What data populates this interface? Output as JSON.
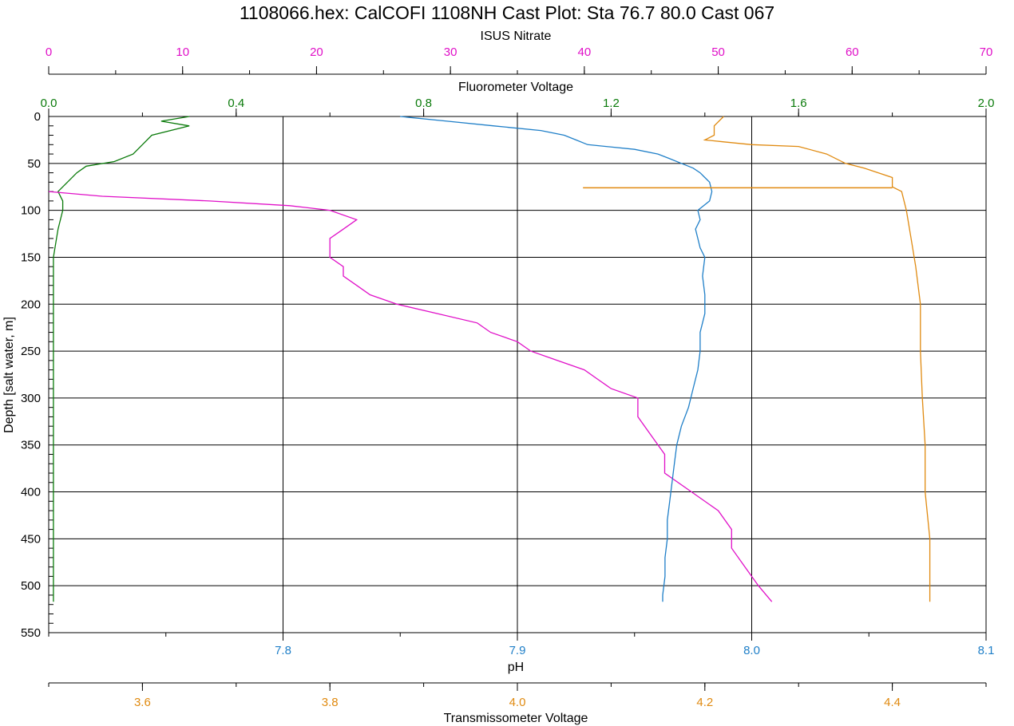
{
  "chart_data": {
    "type": "line",
    "title": "1108066.hex: CalCOFI 1108NH Cast Plot: Sta 76.7 80.0 Cast 067",
    "colors": {
      "nitrate": "#e010c8",
      "fluorometer": "#0a7a0a",
      "ph": "#1f7fc8",
      "transmissometer": "#e08a10",
      "grid": "#000000"
    },
    "grid": true,
    "axes": {
      "depth": {
        "label": "Depth [salt water, m]",
        "range": [
          0,
          550
        ],
        "inverted": true,
        "ticks": [
          0,
          50,
          100,
          150,
          200,
          250,
          300,
          350,
          400,
          450,
          500,
          550
        ],
        "tick_labels": [
          "0",
          "50",
          "100",
          "150",
          "200",
          "250",
          "300",
          "350",
          "400",
          "450",
          "500",
          "550"
        ]
      },
      "nitrate": {
        "label": "ISUS Nitrate",
        "range": [
          0,
          70
        ],
        "ticks": [
          0,
          10,
          20,
          30,
          40,
          50,
          60,
          70
        ],
        "tick_labels": [
          "0",
          "10",
          "20",
          "30",
          "40",
          "50",
          "60",
          "70"
        ]
      },
      "fluorometer": {
        "label": "Fluorometer Voltage",
        "range": [
          0.0,
          2.0
        ],
        "ticks": [
          0.0,
          0.4,
          0.8,
          1.2,
          1.6,
          2.0
        ],
        "tick_labels": [
          "0.0",
          "0.4",
          "0.8",
          "1.2",
          "1.6",
          "2.0"
        ]
      },
      "ph": {
        "label": "pH",
        "range": [
          7.7,
          8.1
        ],
        "ticks": [
          7.8,
          7.9,
          8.0,
          8.1
        ],
        "tick_labels": [
          "7.8",
          "7.9",
          "8.0",
          "8.1"
        ]
      },
      "transmissometer": {
        "label": "Transmissometer Voltage",
        "range": [
          3.5,
          4.5
        ],
        "ticks": [
          3.6,
          3.8,
          4.0,
          4.2,
          4.4
        ],
        "tick_labels": [
          "3.6",
          "3.8",
          "4.0",
          "4.2",
          "4.4"
        ]
      }
    },
    "series": [
      {
        "key": "fluorometer",
        "axis": "fluorometer",
        "points": [
          [
            0.3,
            0
          ],
          [
            0.24,
            5
          ],
          [
            0.3,
            10
          ],
          [
            0.22,
            20
          ],
          [
            0.2,
            30
          ],
          [
            0.18,
            40
          ],
          [
            0.14,
            48
          ],
          [
            0.08,
            53
          ],
          [
            0.06,
            60
          ],
          [
            0.04,
            70
          ],
          [
            0.02,
            80
          ],
          [
            0.03,
            90
          ],
          [
            0.03,
            100
          ],
          [
            0.02,
            120
          ],
          [
            0.01,
            150
          ],
          [
            0.01,
            200
          ],
          [
            0.01,
            300
          ],
          [
            0.01,
            400
          ],
          [
            0.01,
            517
          ]
        ]
      },
      {
        "key": "nitrate",
        "axis": "nitrate",
        "points": [
          [
            0,
            80
          ],
          [
            4,
            85
          ],
          [
            12,
            90
          ],
          [
            18,
            95
          ],
          [
            21,
            100
          ],
          [
            23,
            110
          ],
          [
            22,
            120
          ],
          [
            21,
            130
          ],
          [
            21,
            140
          ],
          [
            21,
            150
          ],
          [
            22,
            160
          ],
          [
            22,
            170
          ],
          [
            23,
            180
          ],
          [
            24,
            190
          ],
          [
            26,
            200
          ],
          [
            29,
            210
          ],
          [
            32,
            220
          ],
          [
            33,
            230
          ],
          [
            35,
            240
          ],
          [
            36,
            250
          ],
          [
            38,
            260
          ],
          [
            40,
            270
          ],
          [
            41,
            280
          ],
          [
            42,
            290
          ],
          [
            44,
            300
          ],
          [
            44,
            320
          ],
          [
            45,
            340
          ],
          [
            46,
            360
          ],
          [
            46,
            380
          ],
          [
            48,
            400
          ],
          [
            50,
            420
          ],
          [
            51,
            440
          ],
          [
            51,
            460
          ],
          [
            52,
            480
          ],
          [
            53,
            500
          ],
          [
            54,
            517
          ]
        ]
      },
      {
        "key": "ph",
        "axis": "ph",
        "points": [
          [
            7.85,
            0
          ],
          [
            7.87,
            5
          ],
          [
            7.89,
            10
          ],
          [
            7.91,
            15
          ],
          [
            7.92,
            20
          ],
          [
            7.925,
            25
          ],
          [
            7.93,
            30
          ],
          [
            7.95,
            35
          ],
          [
            7.96,
            40
          ],
          [
            7.965,
            45
          ],
          [
            7.97,
            50
          ],
          [
            7.975,
            55
          ],
          [
            7.978,
            60
          ],
          [
            7.98,
            65
          ],
          [
            7.982,
            70
          ],
          [
            7.983,
            80
          ],
          [
            7.982,
            90
          ],
          [
            7.977,
            100
          ],
          [
            7.978,
            110
          ],
          [
            7.976,
            120
          ],
          [
            7.977,
            130
          ],
          [
            7.978,
            140
          ],
          [
            7.98,
            150
          ],
          [
            7.979,
            170
          ],
          [
            7.98,
            190
          ],
          [
            7.98,
            210
          ],
          [
            7.978,
            230
          ],
          [
            7.978,
            250
          ],
          [
            7.977,
            270
          ],
          [
            7.975,
            290
          ],
          [
            7.973,
            310
          ],
          [
            7.97,
            330
          ],
          [
            7.968,
            350
          ],
          [
            7.967,
            370
          ],
          [
            7.966,
            390
          ],
          [
            7.965,
            410
          ],
          [
            7.964,
            430
          ],
          [
            7.964,
            450
          ],
          [
            7.963,
            470
          ],
          [
            7.963,
            490
          ],
          [
            7.962,
            510
          ],
          [
            7.962,
            517
          ]
        ]
      },
      {
        "key": "transmissometer",
        "axis": "transmissometer",
        "points": [
          [
            4.22,
            0
          ],
          [
            4.21,
            10
          ],
          [
            4.21,
            20
          ],
          [
            4.2,
            25
          ],
          [
            4.22,
            27
          ],
          [
            4.25,
            30
          ],
          [
            4.3,
            32
          ],
          [
            4.33,
            40
          ],
          [
            4.35,
            50
          ],
          [
            4.37,
            55
          ],
          [
            4.4,
            65
          ],
          [
            4.4,
            75
          ],
          [
            4.41,
            80
          ],
          [
            4.415,
            100
          ],
          [
            4.42,
            130
          ],
          [
            4.425,
            160
          ],
          [
            4.43,
            200
          ],
          [
            4.43,
            250
          ],
          [
            4.432,
            300
          ],
          [
            4.435,
            350
          ],
          [
            4.435,
            400
          ],
          [
            4.44,
            450
          ],
          [
            4.44,
            500
          ],
          [
            4.44,
            517
          ]
        ]
      }
    ],
    "annotations": [
      {
        "axis": "transmissometer",
        "type": "hline",
        "depth": 76,
        "from": 4.07,
        "to": 4.4
      }
    ]
  }
}
